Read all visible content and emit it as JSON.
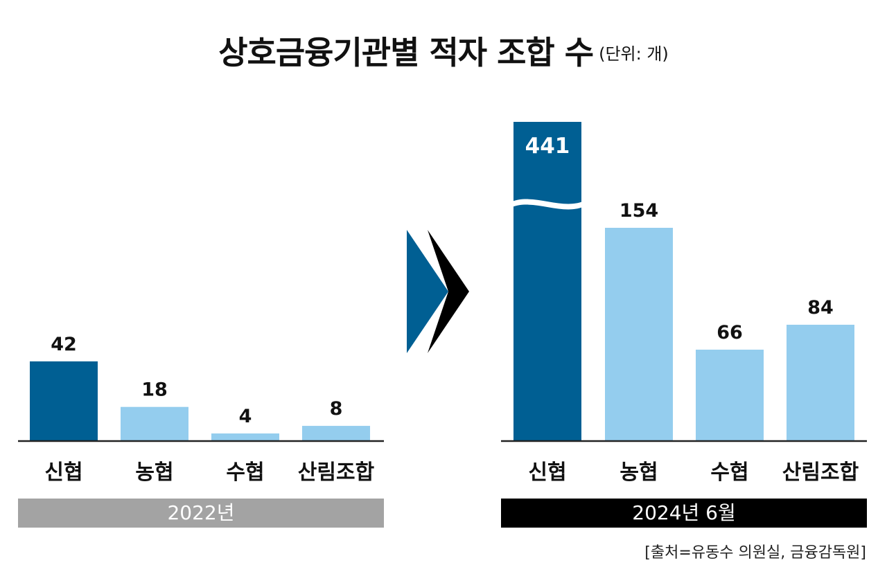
{
  "title": "상호금융기관별 적자 조합 수",
  "unit": "(단위: 개)",
  "colors": {
    "primary": "#005f93",
    "secondary": "#94cdee",
    "axis": "#222222",
    "arrow_front": "#005f93",
    "arrow_back": "#000000",
    "year_bar_left": "#a3a3a3",
    "year_bar_right": "#000000"
  },
  "chart_data": [
    {
      "type": "bar",
      "period": "2022년",
      "categories": [
        "신협",
        "농협",
        "수협",
        "산림조합"
      ],
      "values": [
        42,
        18,
        4,
        8
      ],
      "highlight": "신협"
    },
    {
      "type": "bar",
      "period": "2024년 6월",
      "categories": [
        "신협",
        "농협",
        "수협",
        "산림조합"
      ],
      "values": [
        441,
        154,
        66,
        84
      ],
      "highlight": "신협",
      "broken_axis_bar": "신협"
    }
  ],
  "source": "[출처=유동수 의원실, 금융감독원]"
}
